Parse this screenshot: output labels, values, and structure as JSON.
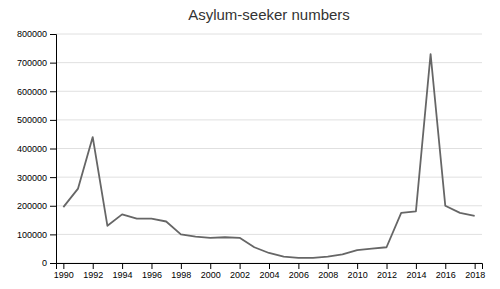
{
  "chart_data": {
    "type": "line",
    "title": "Asylum-seeker numbers",
    "x": [
      1990,
      1991,
      1992,
      1993,
      1994,
      1995,
      1996,
      1997,
      1998,
      1999,
      2000,
      2001,
      2002,
      2003,
      2004,
      2005,
      2006,
      2007,
      2008,
      2009,
      2010,
      2011,
      2012,
      2013,
      2014,
      2015,
      2016,
      2017,
      2018
    ],
    "values": [
      195000,
      260000,
      440000,
      130000,
      170000,
      155000,
      155000,
      145000,
      100000,
      92000,
      88000,
      90000,
      88000,
      55000,
      35000,
      22000,
      18000,
      18000,
      22000,
      30000,
      45000,
      50000,
      55000,
      175000,
      180000,
      730000,
      200000,
      175000,
      165000
    ],
    "color": "#666666",
    "xlim": [
      1989.5,
      2018.5
    ],
    "xticks": [
      1990,
      1992,
      1994,
      1996,
      1998,
      2000,
      2002,
      2004,
      2006,
      2008,
      2010,
      2012,
      2014,
      2016,
      2018
    ],
    "ylim": [
      0,
      800000
    ],
    "yticks": [
      0,
      100000,
      200000,
      300000,
      400000,
      500000,
      600000,
      700000,
      800000
    ],
    "grid": "y"
  }
}
